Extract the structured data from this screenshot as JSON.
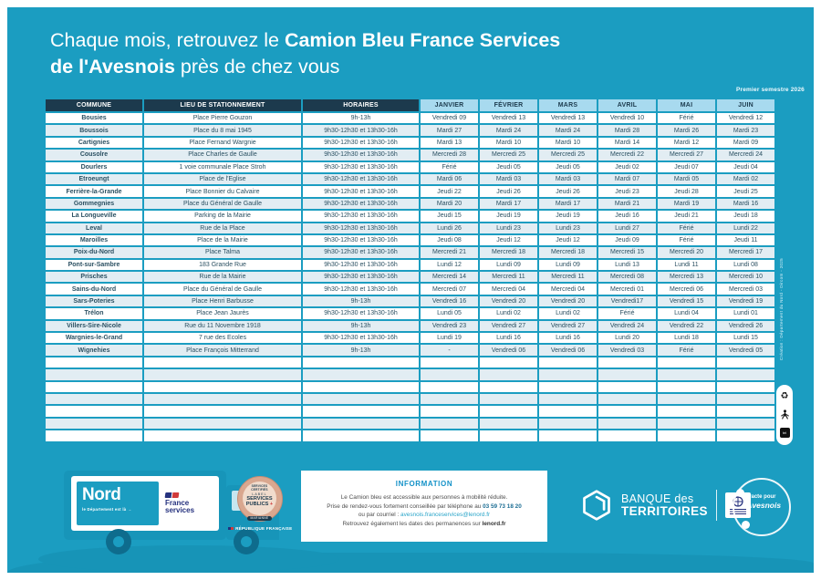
{
  "colors": {
    "background": "#1b9dc1",
    "header_dark": "#1c3a4d",
    "header_month": "#a8daef",
    "row_alt": "#e2edf3",
    "swoosh": "#1794b7",
    "accent_red": "#d03a3a",
    "navy": "#25317e"
  },
  "title": {
    "line1_normal": "Chaque mois, retrouvez le ",
    "line1_bold": "Camion Bleu France Services",
    "line2_bold": "de l'Avesnois",
    "line2_normal": " près de chez vous"
  },
  "semester_label": "Premier semestre 2026",
  "table": {
    "headers": [
      "COMMUNE",
      "LIEU DE STATIONNEMENT",
      "HORAIRES",
      "JANVIER",
      "FÉVRIER",
      "MARS",
      "AVRIL",
      "MAI",
      "JUIN"
    ],
    "empty_row_count": 7,
    "rows": [
      {
        "commune": "Bousies",
        "lieu": "Place Pierre Gouzon",
        "horaires": "9h-13h",
        "dates": [
          "Vendredi 09",
          "Vendredi 13",
          "Vendredi 13",
          "Vendredi 10",
          "Férié",
          "Vendredi 12"
        ]
      },
      {
        "commune": "Boussois",
        "lieu": "Place du 8 mai 1945",
        "horaires": "9h30-12h30 et 13h30-16h",
        "dates": [
          "Mardi 27",
          "Mardi 24",
          "Mardi 24",
          "Mardi 28",
          "Mardi 26",
          "Mardi 23"
        ]
      },
      {
        "commune": "Cartignies",
        "lieu": "Place Fernand Wargnie",
        "horaires": "9h30-12h30 et 13h30-16h",
        "dates": [
          "Mardi 13",
          "Mardi 10",
          "Mardi 10",
          "Mardi 14",
          "Mardi 12",
          "Mardi 09"
        ]
      },
      {
        "commune": "Cousolre",
        "lieu": "Place Charles de Gaulle",
        "horaires": "9h30-12h30 et 13h30-16h",
        "dates": [
          "Mercredi 28",
          "Mercredi 25",
          "Mercredi 25",
          "Mercredi 22",
          "Mercredi 27",
          "Mercredi 24"
        ]
      },
      {
        "commune": "Dourlers",
        "lieu": "1 voie communale Place Stroh",
        "horaires": "9h30-12h30 et 13h30-16h",
        "dates": [
          "Férié",
          "Jeudi 05",
          "Jeudi 05",
          "Jeudi 02",
          "Jeudi 07",
          "Jeudi 04"
        ]
      },
      {
        "commune": "Etroeungt",
        "lieu": "Place de l'Eglise",
        "horaires": "9h30-12h30 et 13h30-16h",
        "dates": [
          "Mardi 06",
          "Mardi 03",
          "Mardi 03",
          "Mardi 07",
          "Mardi 05",
          "Mardi 02"
        ]
      },
      {
        "commune": "Ferrière-la-Grande",
        "lieu": "Place Bonnier du Calvaire",
        "horaires": "9h30-12h30 et 13h30-16h",
        "dates": [
          "Jeudi 22",
          "Jeudi 26",
          "Jeudi 26",
          "Jeudi 23",
          "Jeudi 28",
          "Jeudi 25"
        ]
      },
      {
        "commune": "Gommegnies",
        "lieu": "Place du Général de Gaulle",
        "horaires": "9h30-12h30 et 13h30-16h",
        "dates": [
          "Mardi 20",
          "Mardi 17",
          "Mardi 17",
          "Mardi 21",
          "Mardi 19",
          "Mardi 16"
        ]
      },
      {
        "commune": "La Longueville",
        "lieu": "Parking de la Mairie",
        "horaires": "9h30-12h30 et 13h30-16h",
        "dates": [
          "Jeudi 15",
          "Jeudi 19",
          "Jeudi 19",
          "Jeudi 16",
          "Jeudi 21",
          "Jeudi 18"
        ]
      },
      {
        "commune": "Leval",
        "lieu": "Rue de la Place",
        "horaires": "9h30-12h30 et 13h30-16h",
        "dates": [
          "Lundi 26",
          "Lundi 23",
          "Lundi 23",
          "Lundi 27",
          "Férié",
          "Lundi 22"
        ]
      },
      {
        "commune": "Maroilles",
        "lieu": "Place de la Mairie",
        "horaires": "9h30-12h30 et 13h30-16h",
        "dates": [
          "Jeudi 08",
          "Jeudi 12",
          "Jeudi 12",
          "Jeudi 09",
          "Férié",
          "Jeudi 11"
        ]
      },
      {
        "commune": "Poix-du-Nord",
        "lieu": "Place Talma",
        "horaires": "9h30-12h30 et 13h30-16h",
        "dates": [
          "Mercredi 21",
          "Mercredi 18",
          "Mercredi 18",
          "Mercredi 15",
          "Mercredi 20",
          "Mercredi 17"
        ]
      },
      {
        "commune": "Pont-sur-Sambre",
        "lieu": "183 Grande Rue",
        "horaires": "9h30-12h30 et 13h30-16h",
        "dates": [
          "Lundi 12",
          "Lundi 09",
          "Lundi 09",
          "Lundi 13",
          "Lundi 11",
          "Lundi 08"
        ]
      },
      {
        "commune": "Prisches",
        "lieu": "Rue de la Mairie",
        "horaires": "9h30-12h30 et 13h30-16h",
        "dates": [
          "Mercredi 14",
          "Mercredi 11",
          "Mercredi 11",
          "Mercredi 08",
          "Mercredi 13",
          "Mercredi 10"
        ]
      },
      {
        "commune": "Sains-du-Nord",
        "lieu": "Place du Général de Gaulle",
        "horaires": "9h30-12h30 et 13h30-16h",
        "dates": [
          "Mercredi 07",
          "Mercredi 04",
          "Mercredi 04",
          "Mercredi 01",
          "Mercredi 06",
          "Mercredi 03"
        ]
      },
      {
        "commune": "Sars-Poteries",
        "lieu": "Place Henri Barbusse",
        "horaires": "9h-13h",
        "dates": [
          "Vendredi 16",
          "Vendredi 20",
          "Vendredi 20",
          "Vendredi17",
          "Vendredi 15",
          "Vendredi 19"
        ]
      },
      {
        "commune": "Trélon",
        "lieu": "Place Jean Jaurès",
        "horaires": "9h30-12h30 et 13h30-16h",
        "dates": [
          "Lundi 05",
          "Lundi 02",
          "Lundi 02",
          "Férié",
          "Lundi 04",
          "Lundi 01"
        ]
      },
      {
        "commune": "Villers-Sire-Nicole",
        "lieu": "Rue du 11 Novembre 1918",
        "horaires": "9h-13h",
        "dates": [
          "Vendredi 23",
          "Vendredi 27",
          "Vendredi 27",
          "Vendredi 24",
          "Vendredi 22",
          "Vendredi 26"
        ]
      },
      {
        "commune": "Wargnies-le-Grand",
        "lieu": "7 rue des Ecoles",
        "horaires": "9h30-12h30 et 13h30-16h",
        "dates": [
          "Lundi 19",
          "Lundi 16",
          "Lundi 16",
          "Lundi 20",
          "Lundi 18",
          "Lundi 15"
        ]
      },
      {
        "commune": "Wignehies",
        "lieu": "Place François Mitterrand",
        "horaires": "9h-13h",
        "dates": [
          "-",
          "Vendredi 06",
          "Vendredi 06",
          "Vendredi 03",
          "Férié",
          "Vendredi 05"
        ]
      }
    ]
  },
  "info": {
    "title": "INFORMATION",
    "line1": "Le Camion bleu est accessible aux personnes à mobilité réduite.",
    "line2_prefix": "Prise de rendez-vous fortement conseillée par téléphone au ",
    "phone": "03 59 73 18 20",
    "line3_prefix": "ou par courriel : ",
    "email": "avesnois.franceservices@lenord.fr",
    "line4_prefix": "Retrouvez également les dates des permanences sur ",
    "line4_bold": "lenord.fr"
  },
  "footer": {
    "nord": {
      "word": "Nord",
      "tagline": "le Département est là →"
    },
    "france_services": {
      "line1": "France",
      "line2": "services"
    },
    "label_medal": {
      "rim_top": "SERVICES CERTIFIÉS",
      "label": "LABEL",
      "main1": "SERVICES",
      "main2": "PUBLICS",
      "plus": "+",
      "banner": "MARIANNE"
    },
    "republique": "RÉPUBLIQUE FRANÇAISE",
    "banque": {
      "line1": "BANQUE des",
      "line2": "TERRITOIRES"
    },
    "pacte": {
      "line1": "Pacte pour",
      "line2": "l'Avesnois"
    },
    "infotri_label": "tri"
  },
  "credit": "Création : Département du Nord - Dircom - 2025"
}
